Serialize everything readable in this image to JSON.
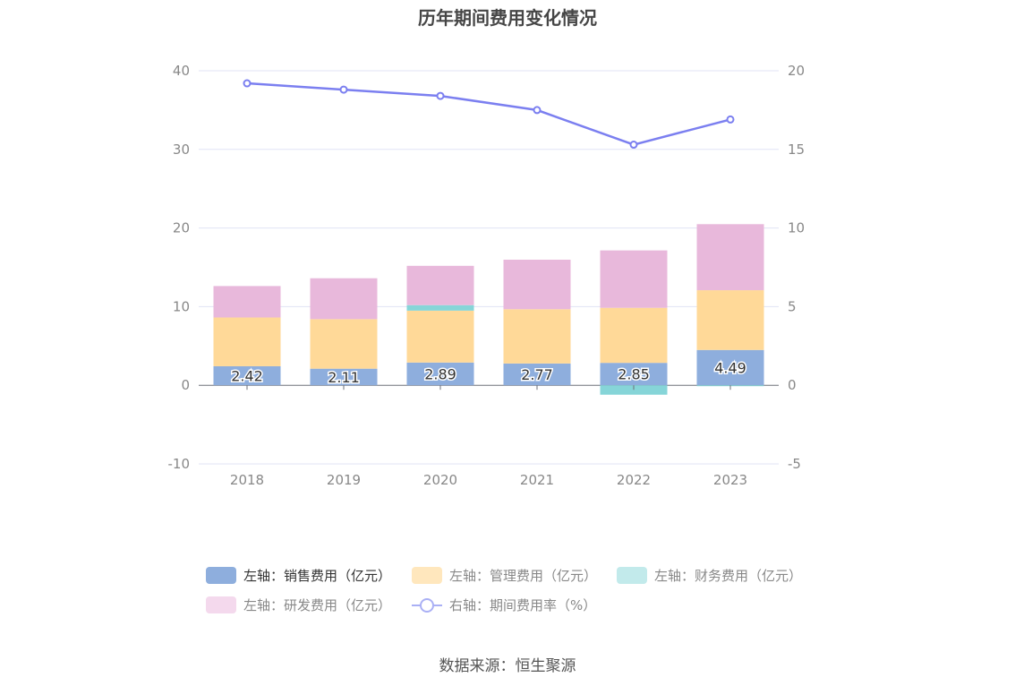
{
  "chart_data": {
    "type": "bar",
    "title": "历年期间费用变化情况",
    "categories": [
      "2018",
      "2019",
      "2020",
      "2021",
      "2022",
      "2023"
    ],
    "series": [
      {
        "name": "左轴：销售费用（亿元）",
        "axis": "left",
        "values": [
          2.42,
          2.11,
          2.89,
          2.77,
          2.85,
          4.49
        ],
        "color": "#8eaedd"
      },
      {
        "name": "左轴：管理费用（亿元）",
        "axis": "left",
        "values": [
          6.2,
          6.3,
          6.6,
          6.9,
          7.0,
          7.6
        ],
        "color": "#ffd998"
      },
      {
        "name": "左轴：财务费用（亿元）",
        "axis": "left",
        "values": [
          0.0,
          0.0,
          0.7,
          0.0,
          -1.2,
          -0.1
        ],
        "color": "#86d5d8"
      },
      {
        "name": "左轴：研发费用（亿元）",
        "axis": "left",
        "values": [
          4.0,
          5.2,
          5.0,
          6.3,
          7.3,
          8.4
        ],
        "color": "#e8b8db"
      },
      {
        "name": "右轴：期间费用率（%）",
        "axis": "right",
        "type": "line",
        "values": [
          19.2,
          18.8,
          18.4,
          17.5,
          15.3,
          16.9
        ],
        "color": "#7b7ff0"
      }
    ],
    "data_labels": [
      "2.42",
      "2.11",
      "2.89",
      "2.77",
      "2.85",
      "4.49"
    ],
    "left_axis": {
      "min": -10,
      "max": 40,
      "ticks": [
        "-10",
        "0",
        "10",
        "20",
        "30",
        "40"
      ]
    },
    "right_axis": {
      "min": -5,
      "max": 20,
      "ticks": [
        "-5",
        "0",
        "5",
        "10",
        "15",
        "20"
      ]
    },
    "legend_position": "bottom",
    "grid": true
  },
  "source_text": "数据来源：恒生聚源"
}
